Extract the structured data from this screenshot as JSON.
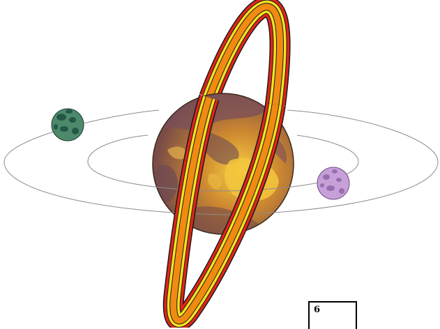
{
  "figure": {
    "label": "6",
    "central_planet": {
      "name": "ringed-planet",
      "colors": {
        "base": "#b8802e",
        "highlight": "#f2c23a",
        "dark": "#6e4a52",
        "outline": "#3a2a1a"
      }
    },
    "rings": {
      "colors": [
        "#e3241b",
        "#ffffff",
        "#f5e21e",
        "#f08a12"
      ],
      "outline": "#1a1a1a"
    },
    "moons": [
      {
        "name": "green-moon",
        "base": "#4d8a6b",
        "spots": "#1f4e44"
      },
      {
        "name": "purple-moon",
        "base": "#c7a0d8",
        "spots": "#8a62a8"
      }
    ],
    "orbit_color": "#8c8c8c"
  }
}
